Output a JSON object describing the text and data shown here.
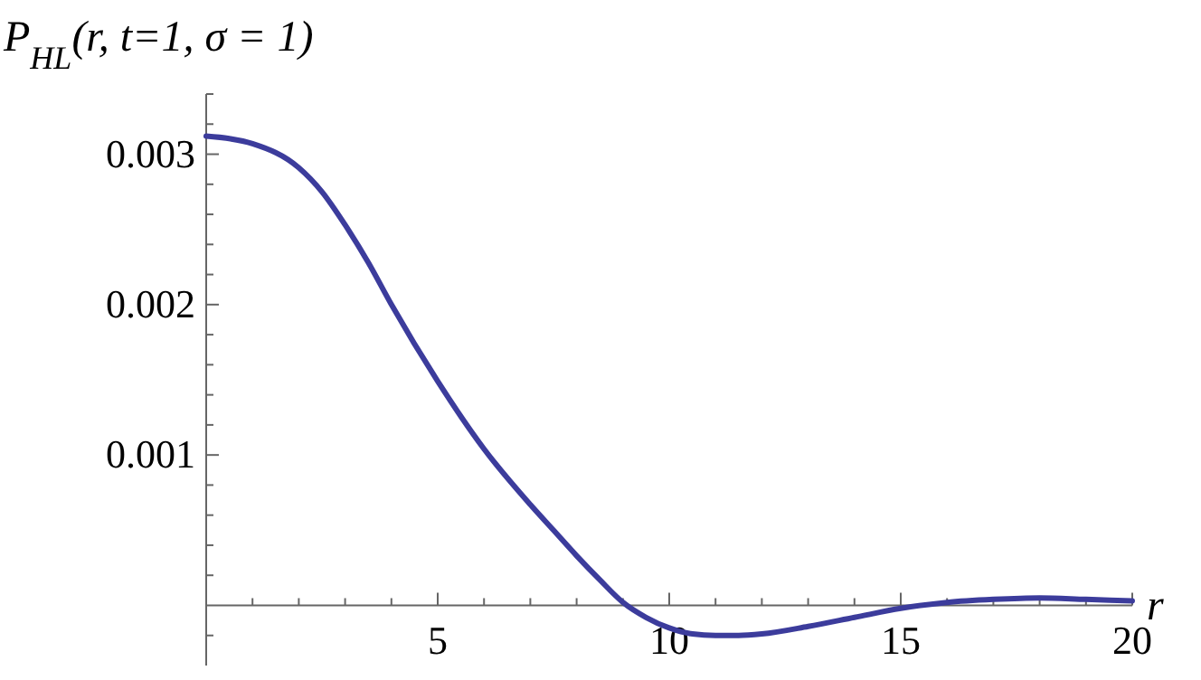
{
  "chart_data": {
    "type": "line",
    "title": "P$_{HL}$(r, t=1, σ = 1)",
    "xlabel": "r",
    "x": [
      0,
      1,
      2,
      2.5,
      3,
      3.5,
      4,
      5,
      6,
      7,
      7.5,
      8,
      8.5,
      9,
      9.5,
      10,
      10.5,
      11,
      11.5,
      12,
      13,
      14,
      15,
      16,
      17,
      18,
      19,
      20
    ],
    "series": [
      {
        "color": "#3c3c9c",
        "values": [
          0.00312,
          0.00307,
          0.00291,
          0.00275,
          0.00253,
          0.00228,
          0.002,
          0.00149,
          0.00104,
          0.00067,
          0.0005,
          0.00033,
          0.00017,
          2e-05,
          -8e-05,
          -0.00015,
          -0.00019,
          -0.0002,
          -0.0002,
          -0.00019,
          -0.00014,
          -8e-05,
          -2e-05,
          2e-05,
          4e-05,
          5e-05,
          4e-05,
          3e-05
        ]
      }
    ],
    "xlim": [
      0,
      20
    ],
    "ylim": [
      -0.0004,
      0.0034
    ],
    "xticks": [
      {
        "value": 1,
        "label": null
      },
      {
        "value": 2,
        "label": null
      },
      {
        "value": 3,
        "label": null
      },
      {
        "value": 4,
        "label": null
      },
      5,
      {
        "value": 6,
        "label": null
      },
      {
        "value": 7,
        "label": null
      },
      {
        "value": 8,
        "label": null
      },
      {
        "value": 9,
        "label": null
      },
      10,
      {
        "value": 11,
        "label": null
      },
      {
        "value": 12,
        "label": null
      },
      {
        "value": 13,
        "label": null
      },
      {
        "value": 14,
        "label": null
      },
      15,
      {
        "value": 16,
        "label": null
      },
      {
        "value": 17,
        "label": null
      },
      {
        "value": 18,
        "label": null
      },
      {
        "value": 19,
        "label": null
      },
      20
    ],
    "yticks": [
      {
        "value": -0.0002,
        "label": null
      },
      {
        "value": 0.0002,
        "label": null
      },
      {
        "value": 0.0004,
        "label": null
      },
      {
        "value": 0.0006,
        "label": null
      },
      {
        "value": 0.0008,
        "label": null
      },
      0.001,
      {
        "value": 0.0012,
        "label": null
      },
      {
        "value": 0.0014,
        "label": null
      },
      {
        "value": 0.0016,
        "label": null
      },
      {
        "value": 0.0018,
        "label": null
      },
      0.002,
      {
        "value": 0.0022,
        "label": null
      },
      {
        "value": 0.0024,
        "label": null
      },
      {
        "value": 0.0026,
        "label": null
      },
      {
        "value": 0.0028,
        "label": null
      },
      0.003,
      {
        "value": 0.0032,
        "label": null
      },
      {
        "value": 0.0034,
        "label": null
      }
    ],
    "grid": false,
    "marker": "none",
    "line_style": "solid"
  }
}
